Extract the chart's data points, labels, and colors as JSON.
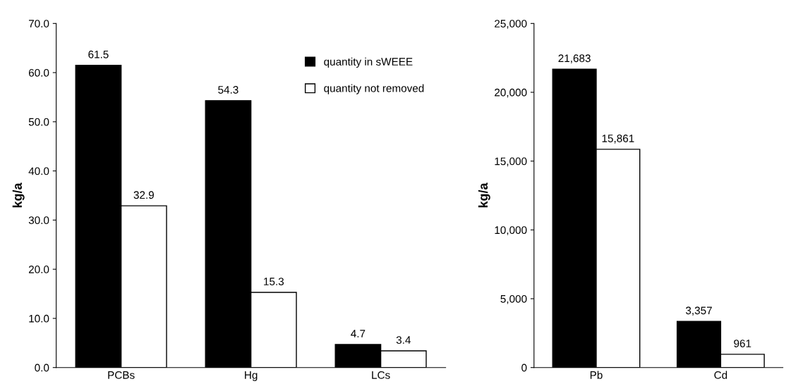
{
  "chart_data": [
    {
      "type": "bar",
      "ylabel": "kg/a",
      "categories": [
        "PCBs",
        "Hg",
        "LCs"
      ],
      "series": [
        {
          "name": "quantity in sWEEE",
          "color": "#000000",
          "values": [
            61.5,
            54.3,
            4.7
          ]
        },
        {
          "name": "quantity not removed",
          "color": "#ffffff",
          "values": [
            32.9,
            15.3,
            3.4
          ]
        }
      ],
      "ylim": [
        0,
        70
      ],
      "yticks": [
        {
          "value": 0,
          "label": "0.0"
        },
        {
          "value": 10,
          "label": "10.0"
        },
        {
          "value": 20,
          "label": "20.0"
        },
        {
          "value": 30,
          "label": "30.0"
        },
        {
          "value": 40,
          "label": "40.0"
        },
        {
          "value": 50,
          "label": "50.0"
        },
        {
          "value": 60,
          "label": "60.0"
        },
        {
          "value": 70,
          "label": "70.0"
        }
      ],
      "data_labels": true,
      "legend": "top right",
      "grid": false
    },
    {
      "type": "bar",
      "ylabel": "kg/a",
      "categories": [
        "Pb",
        "Cd"
      ],
      "series": [
        {
          "color": "#000000",
          "values": [
            21683,
            3357
          ],
          "value_labels": [
            "21,683",
            "3,357"
          ]
        },
        {
          "color": "#ffffff",
          "values": [
            15861,
            961
          ],
          "value_labels": [
            "15,861",
            "961"
          ]
        }
      ],
      "ylim": [
        0,
        25000
      ],
      "yticks": [
        0,
        {
          "value": 5000,
          "label": "5,000"
        },
        {
          "value": 10000,
          "label": "10,000"
        },
        {
          "value": 15000,
          "label": "15,000"
        },
        {
          "value": 20000,
          "label": "20,000"
        },
        {
          "value": 25000,
          "label": "25,000"
        }
      ],
      "grid": false
    }
  ]
}
